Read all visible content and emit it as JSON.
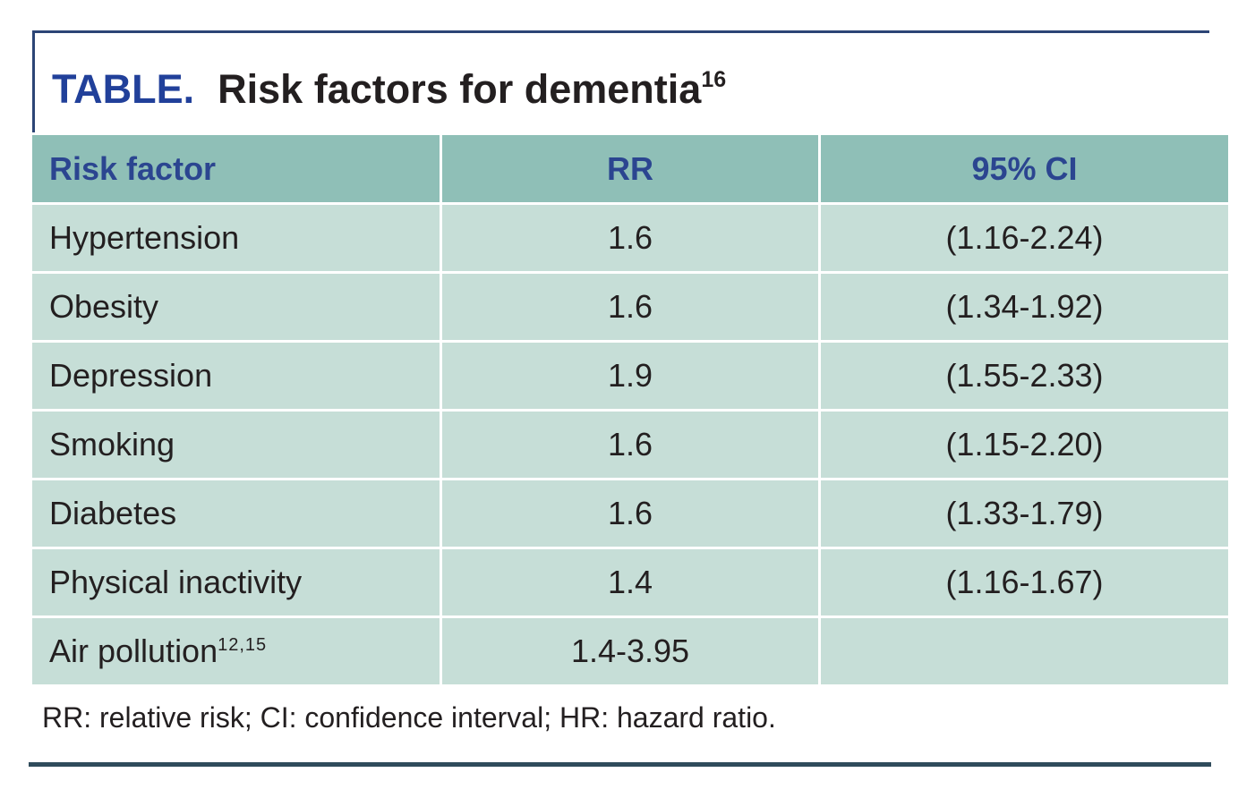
{
  "colors": {
    "header_bg": "#8fbfb7",
    "row_bg": "#c6ded7",
    "title_blue": "#21409a",
    "header_text_blue": "#2b4590",
    "box_border_blue": "#2c4576",
    "bottom_rule": "#2f4b5b",
    "body_text": "#231f20"
  },
  "chart_data": {
    "type": "table",
    "title_label": "TABLE.",
    "title_text": "Risk factors for dementia",
    "title_superscript": "16",
    "columns": [
      "Risk factor",
      "RR",
      "95% CI"
    ],
    "rows": [
      {
        "factor": "Hypertension",
        "factor_sup": "",
        "rr": "1.6",
        "ci": "(1.16-2.24)"
      },
      {
        "factor": "Obesity",
        "factor_sup": "",
        "rr": "1.6",
        "ci": "(1.34-1.92)"
      },
      {
        "factor": "Depression",
        "factor_sup": "",
        "rr": "1.9",
        "ci": "(1.55-2.33)"
      },
      {
        "factor": "Smoking",
        "factor_sup": "",
        "rr": "1.6",
        "ci": "(1.15-2.20)"
      },
      {
        "factor": "Diabetes",
        "factor_sup": "",
        "rr": "1.6",
        "ci": "(1.33-1.79)"
      },
      {
        "factor": "Physical inactivity",
        "factor_sup": "",
        "rr": "1.4",
        "ci": "(1.16-1.67)"
      },
      {
        "factor": "Air pollution",
        "factor_sup": "12,15",
        "rr": "1.4-3.95",
        "ci": ""
      }
    ],
    "footnote": "RR: relative risk; CI: confidence interval; HR: hazard ratio."
  }
}
